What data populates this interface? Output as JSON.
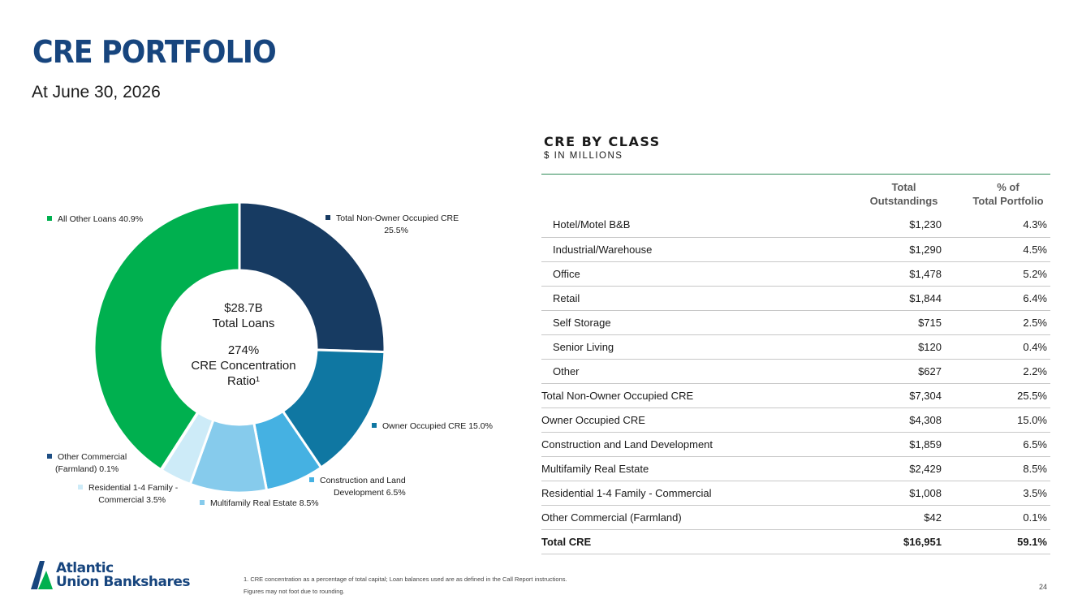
{
  "header": {
    "title": "CRE PORTFOLIO",
    "subtitle": "At June 30, 2026"
  },
  "chart_data": {
    "type": "pie",
    "variant": "donut",
    "center": {
      "line1": "$28.7B",
      "line2": "Total Loans",
      "line3": "274%",
      "line4": "CRE Concentration",
      "line5": "Ratio¹"
    },
    "slices": [
      {
        "label": "Total Non-Owner Occupied CRE",
        "value": 25.5,
        "display": "25.5%",
        "color": "#173b62"
      },
      {
        "label": "Owner Occupied CRE",
        "value": 15.0,
        "display": "15.0%",
        "color": "#0f77a2"
      },
      {
        "label": "Construction and Land Development",
        "value": 6.5,
        "display": "6.5%",
        "color": "#45b1e2"
      },
      {
        "label": "Multifamily Real Estate",
        "value": 8.5,
        "display": "8.5%",
        "color": "#86cbec"
      },
      {
        "label": "Residential 1-4 Family - Commercial",
        "value": 3.5,
        "display": "3.5%",
        "color": "#cdebf8"
      },
      {
        "label": "Other Commercial (Farmland)",
        "value": 0.1,
        "display": "0.1%",
        "color": "#1e4f84"
      },
      {
        "label": "All Other Loans",
        "value": 40.9,
        "display": "40.9%",
        "color": "#00b04f"
      }
    ],
    "legend": [
      {
        "line1": "Total Non-Owner Occupied CRE",
        "line2": "25.5%"
      },
      {
        "line1": "Owner Occupied CRE 15.0%",
        "line2": ""
      },
      {
        "line1": "Construction and Land",
        "line2": "Development 6.5%"
      },
      {
        "line1": "Multifamily Real Estate 8.5%",
        "line2": ""
      },
      {
        "line1": "Residential 1-4 Family -",
        "line2": "Commercial 3.5%"
      },
      {
        "line1": "Other Commercial",
        "line2": "(Farmland) 0.1%"
      },
      {
        "line1": "All Other Loans 40.9%",
        "line2": ""
      }
    ]
  },
  "table": {
    "title": "CRE BY CLASS",
    "unit": "$ IN MILLIONS",
    "headers": {
      "outstanding_1": "Total",
      "outstanding_2": "Outstandings",
      "pct_1": "% of",
      "pct_2": "Total Portfolio"
    },
    "rows": [
      {
        "name": "Hotel/Motel B&B",
        "outstanding": "$1,230",
        "pct": "4.3%",
        "kind": "sub"
      },
      {
        "name": "Industrial/Warehouse",
        "outstanding": "$1,290",
        "pct": "4.5%",
        "kind": "sub"
      },
      {
        "name": "Office",
        "outstanding": "$1,478",
        "pct": "5.2%",
        "kind": "sub"
      },
      {
        "name": "Retail",
        "outstanding": "$1,844",
        "pct": "6.4%",
        "kind": "sub"
      },
      {
        "name": "Self Storage",
        "outstanding": "$715",
        "pct": "2.5%",
        "kind": "sub"
      },
      {
        "name": "Senior Living",
        "outstanding": "$120",
        "pct": "0.4%",
        "kind": "sub"
      },
      {
        "name": "Other",
        "outstanding": "$627",
        "pct": "2.2%",
        "kind": "sub"
      },
      {
        "name": "Total Non-Owner Occupied CRE",
        "outstanding": "$7,304",
        "pct": "25.5%",
        "kind": "main"
      },
      {
        "name": "Owner Occupied CRE",
        "outstanding": "$4,308",
        "pct": "15.0%",
        "kind": "main"
      },
      {
        "name": "Construction and Land Development",
        "outstanding": "$1,859",
        "pct": "6.5%",
        "kind": "main"
      },
      {
        "name": "Multifamily Real Estate",
        "outstanding": "$2,429",
        "pct": "8.5%",
        "kind": "main"
      },
      {
        "name": "Residential 1-4 Family - Commercial",
        "outstanding": "$1,008",
        "pct": "3.5%",
        "kind": "main"
      },
      {
        "name": "Other Commercial (Farmland)",
        "outstanding": "$42",
        "pct": "0.1%",
        "kind": "main"
      },
      {
        "name": "Total CRE",
        "outstanding": "$16,951",
        "pct": "59.1%",
        "kind": "total"
      }
    ]
  },
  "logo": {
    "line1": "Atlantic",
    "line2": "Union Bankshares",
    "color": "#17457e",
    "accent_color": "#00b04f"
  },
  "footer": {
    "footnote_1": "1. CRE concentration as a percentage of total capital; Loan balances used are as defined in the Call Report instructions.",
    "footnote_2": "Figures may not foot due to rounding.",
    "page_number": "24"
  }
}
